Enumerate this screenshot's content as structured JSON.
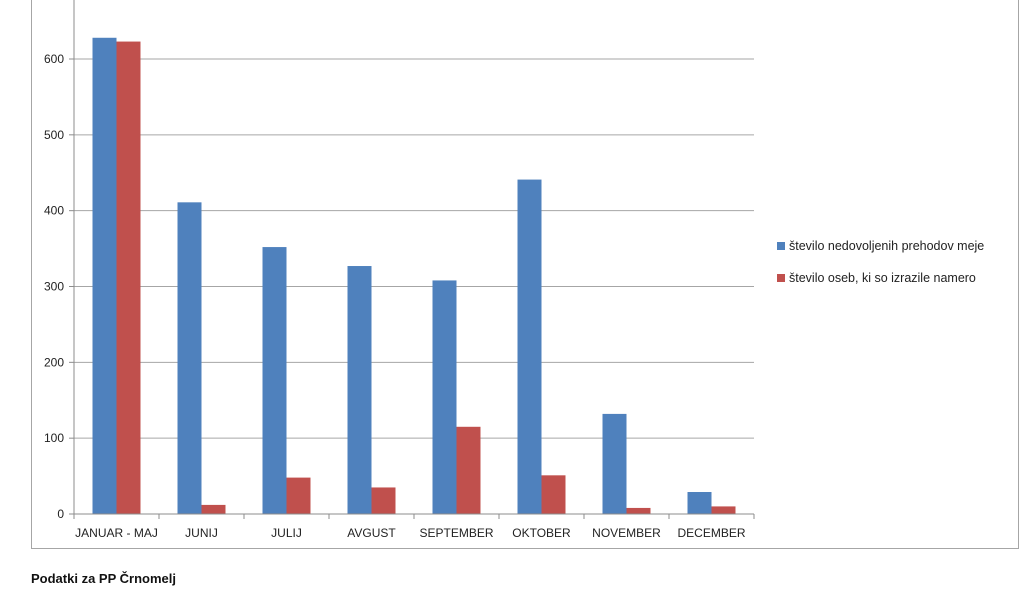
{
  "chart_data": {
    "type": "bar",
    "categories": [
      "JANUAR - MAJ",
      "JUNIJ",
      "JULIJ",
      "AVGUST",
      "SEPTEMBER",
      "OKTOBER",
      "NOVEMBER",
      "DECEMBER"
    ],
    "series": [
      {
        "name": "število nedovoljenih prehodov meje",
        "color": "#4f81bd",
        "values": [
          628,
          411,
          352,
          327,
          308,
          441,
          132,
          29
        ]
      },
      {
        "name": "število oseb, ki so izrazile namero",
        "color": "#c0504d",
        "values": [
          623,
          12,
          48,
          35,
          115,
          51,
          8,
          10
        ]
      }
    ],
    "ylim": [
      0,
      700
    ],
    "yticks": [
      0,
      100,
      200,
      300,
      400,
      500,
      600
    ],
    "grid": true,
    "legend_position": "right"
  },
  "caption": "Podatki za PP Črnomelj"
}
